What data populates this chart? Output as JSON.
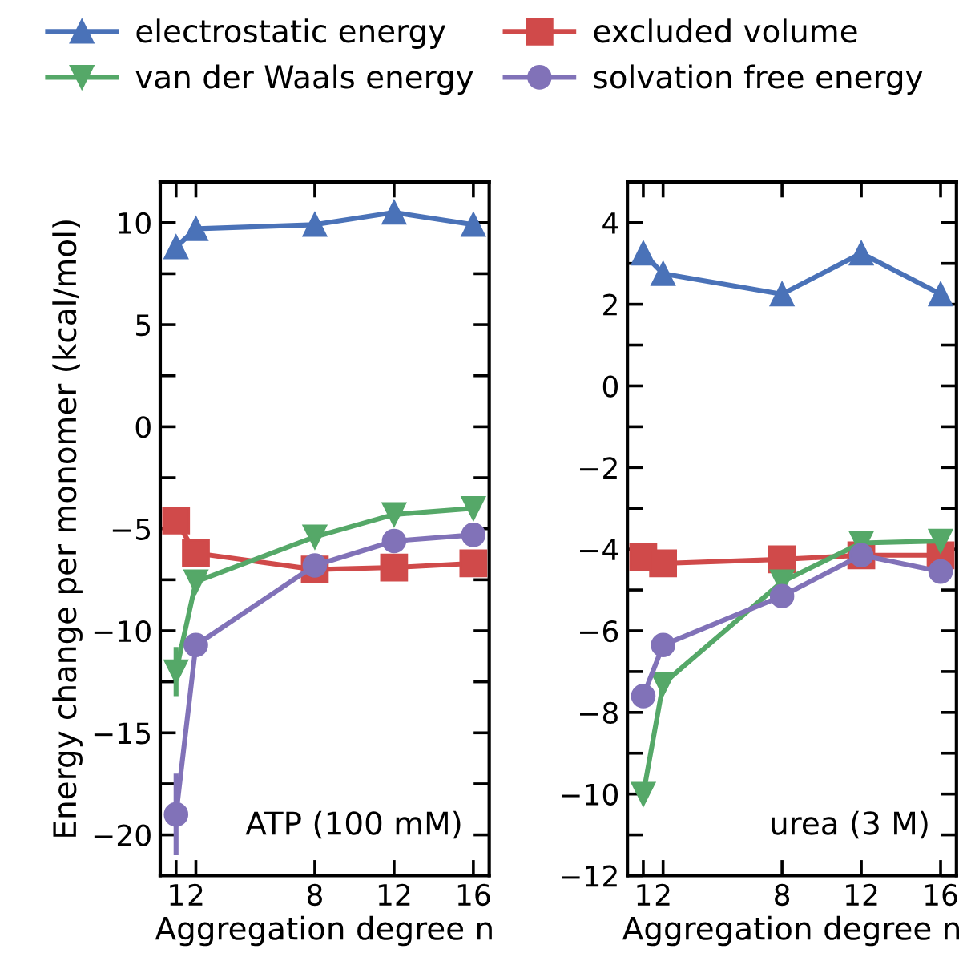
{
  "chart_data": [
    {
      "type": "line",
      "x": [
        1,
        2,
        8,
        12,
        16
      ],
      "xlabel": "Aggregation degree n",
      "ylabel": "Energy change per monomer (kcal/mol)",
      "xlim": [
        0.2,
        16.8
      ],
      "xticks": [
        1,
        2,
        8,
        12,
        16
      ],
      "ylim": [
        -22,
        12
      ],
      "yticks": [
        -20,
        {
          "value": -17.5,
          "label": null
        },
        -15,
        {
          "value": -12.5,
          "label": null
        },
        -10,
        {
          "value": -7.5,
          "label": null
        },
        -5,
        {
          "value": -2.5,
          "label": null
        },
        0,
        {
          "value": 2.5,
          "label": null
        },
        5,
        {
          "value": 7.5,
          "label": null
        },
        10
      ],
      "legend": "top",
      "grid": false,
      "annotations": [
        "ATP (100 mM)"
      ],
      "series": [
        {
          "name": "electrostatic energy",
          "color": "#4a72b8",
          "marker": "triangle",
          "values": [
            8.8,
            9.7,
            9.9,
            10.5,
            9.9
          ]
        },
        {
          "name": "excluded volume",
          "color": "#d04a4a",
          "marker": "square",
          "values": [
            -4.6,
            -6.2,
            -7.0,
            -6.9,
            -6.7
          ]
        },
        {
          "name": "van der Waals energy",
          "color": "#55a868",
          "marker": "triangle_down",
          "values": [
            -12.0,
            -7.6,
            -5.4,
            -4.3,
            -4.0
          ],
          "errors": [
            1.2,
            null,
            null,
            null,
            null
          ]
        },
        {
          "name": "solvation free energy",
          "color": "#8172b8",
          "marker": "circle",
          "values": [
            -19.0,
            -10.7,
            -6.8,
            -5.6,
            -5.3
          ],
          "errors": [
            2.0,
            null,
            null,
            null,
            null
          ]
        }
      ]
    },
    {
      "type": "line",
      "x": [
        1,
        2,
        8,
        12,
        16
      ],
      "xlabel": "Aggregation degree n",
      "xlim": [
        0.2,
        16.8
      ],
      "xticks": [
        1,
        2,
        8,
        12,
        16
      ],
      "ylim": [
        -12,
        5
      ],
      "yticks": [
        -12,
        {
          "value": -11,
          "label": null
        },
        -10,
        {
          "value": -9,
          "label": null
        },
        -8,
        {
          "value": -7,
          "label": null
        },
        -6,
        {
          "value": -5,
          "label": null
        },
        -4,
        {
          "value": -3,
          "label": null
        },
        -2,
        {
          "value": -1,
          "label": null
        },
        0,
        {
          "value": 1,
          "label": null
        },
        2,
        {
          "value": 3,
          "label": null
        },
        4
      ],
      "grid": false,
      "annotations": [
        "urea (3 M)"
      ],
      "series": [
        {
          "color": "#4a72b8",
          "marker": "triangle",
          "values": [
            3.25,
            2.75,
            2.25,
            3.25,
            2.25
          ]
        },
        {
          "color": "#d04a4a",
          "marker": "square",
          "values": [
            -4.2,
            -4.35,
            -4.25,
            -4.15,
            -4.15
          ]
        },
        {
          "color": "#55a868",
          "marker": "triangle_down",
          "values": [
            -10.0,
            -7.3,
            -4.8,
            -3.85,
            -3.8
          ]
        },
        {
          "color": "#8172b8",
          "marker": "circle",
          "values": [
            -7.6,
            -6.35,
            -5.15,
            -4.15,
            -4.55
          ]
        }
      ]
    }
  ]
}
